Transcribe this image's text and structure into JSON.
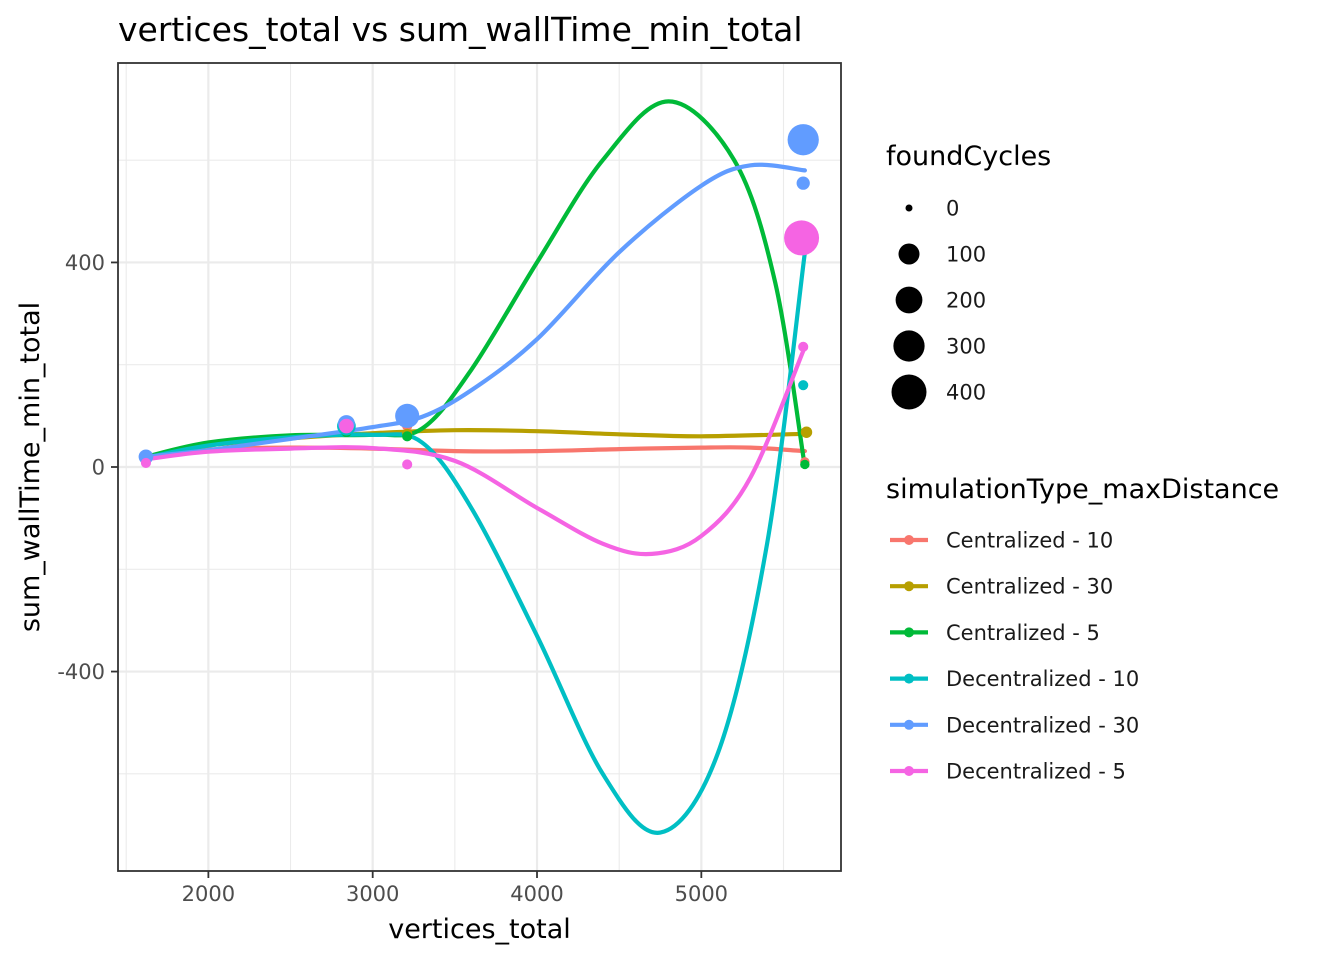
{
  "chart_data": {
    "type": "scatter",
    "title": "vertices_total  vs  sum_wallTime_min_total",
    "xlabel": "vertices_total",
    "ylabel": "sum_wallTime_min_total",
    "xlim": [
      1450,
      5850
    ],
    "ylim": [
      -790,
      790
    ],
    "x_ticks": [
      2000,
      3000,
      4000,
      5000
    ],
    "y_ticks": [
      -400,
      0,
      400
    ],
    "x_tick_labels": [
      "2000",
      "3000",
      "4000",
      "5000"
    ],
    "y_tick_labels": [
      "-400",
      "0",
      "400"
    ],
    "grid": true,
    "size_legend": {
      "title": "foundCycles",
      "values": [
        0,
        100,
        200,
        300,
        400
      ],
      "labels": [
        "0",
        "100",
        "200",
        "300",
        "400"
      ]
    },
    "color_legend": {
      "title": "simulationType_maxDistance",
      "placement": "right"
    },
    "series": [
      {
        "name": "Centralized - 10",
        "color": "#F8766D",
        "points": [
          {
            "x": 1620,
            "y": 18,
            "size": 10
          },
          {
            "x": 2840,
            "y": 75,
            "size": 5
          },
          {
            "x": 3210,
            "y": 80,
            "size": 5
          },
          {
            "x": 5630,
            "y": 10,
            "size": 3
          }
        ],
        "curve": [
          [
            1620,
            20
          ],
          [
            2000,
            34
          ],
          [
            2500,
            38
          ],
          [
            3000,
            36
          ],
          [
            3500,
            31
          ],
          [
            4000,
            31
          ],
          [
            4500,
            35
          ],
          [
            5000,
            38
          ],
          [
            5300,
            38
          ],
          [
            5630,
            31
          ]
        ]
      },
      {
        "name": "Centralized - 30",
        "color": "#B79F00",
        "points": [
          {
            "x": 1620,
            "y": 22,
            "size": 10
          },
          {
            "x": 2840,
            "y": 75,
            "size": 5
          },
          {
            "x": 3210,
            "y": 65,
            "size": 5
          },
          {
            "x": 5640,
            "y": 68,
            "size": 10
          }
        ],
        "curve": [
          [
            1620,
            18
          ],
          [
            2000,
            42
          ],
          [
            2500,
            56
          ],
          [
            3000,
            66
          ],
          [
            3500,
            72
          ],
          [
            4000,
            70
          ],
          [
            4500,
            64
          ],
          [
            5000,
            60
          ],
          [
            5630,
            65
          ]
        ]
      },
      {
        "name": "Centralized - 5",
        "color": "#00BA38",
        "points": [
          {
            "x": 1620,
            "y": 15,
            "size": 10
          },
          {
            "x": 2840,
            "y": 70,
            "size": 10
          },
          {
            "x": 3210,
            "y": 60,
            "size": 5
          },
          {
            "x": 5630,
            "y": 5,
            "size": 3
          }
        ],
        "curve": [
          [
            1620,
            20
          ],
          [
            2000,
            48
          ],
          [
            2500,
            62
          ],
          [
            3000,
            63
          ],
          [
            3300,
            75
          ],
          [
            3600,
            190
          ],
          [
            4000,
            400
          ],
          [
            4400,
            600
          ],
          [
            4800,
            715
          ],
          [
            5200,
            600
          ],
          [
            5450,
            360
          ],
          [
            5630,
            0
          ]
        ]
      },
      {
        "name": "Decentralized - 10",
        "color": "#00BFC4",
        "points": [
          {
            "x": 1620,
            "y": 20,
            "size": 10
          },
          {
            "x": 2840,
            "y": 80,
            "size": 70
          },
          {
            "x": 3210,
            "y": 95,
            "size": 60
          },
          {
            "x": 5620,
            "y": 160,
            "size": 5
          },
          {
            "x": 5620,
            "y": 640,
            "size": 250
          }
        ],
        "curve": [
          [
            1620,
            18
          ],
          [
            2000,
            42
          ],
          [
            2500,
            58
          ],
          [
            3000,
            63
          ],
          [
            3300,
            48
          ],
          [
            3600,
            -80
          ],
          [
            4000,
            -330
          ],
          [
            4400,
            -600
          ],
          [
            4750,
            -715
          ],
          [
            5100,
            -560
          ],
          [
            5400,
            -150
          ],
          [
            5630,
            420
          ]
        ]
      },
      {
        "name": "Decentralized - 30",
        "color": "#619CFF",
        "points": [
          {
            "x": 1620,
            "y": 20,
            "size": 30
          },
          {
            "x": 2840,
            "y": 85,
            "size": 50
          },
          {
            "x": 3210,
            "y": 100,
            "size": 150
          },
          {
            "x": 5620,
            "y": 555,
            "size": 20
          },
          {
            "x": 5620,
            "y": 640,
            "size": 300
          }
        ],
        "curve": [
          [
            1620,
            20
          ],
          [
            2000,
            33
          ],
          [
            2500,
            55
          ],
          [
            3000,
            78
          ],
          [
            3300,
            98
          ],
          [
            3600,
            150
          ],
          [
            4000,
            250
          ],
          [
            4500,
            420
          ],
          [
            5000,
            550
          ],
          [
            5300,
            590
          ],
          [
            5630,
            580
          ]
        ]
      },
      {
        "name": "Decentralized - 5",
        "color": "#F564E3",
        "points": [
          {
            "x": 1620,
            "y": 8,
            "size": 5
          },
          {
            "x": 2840,
            "y": 80,
            "size": 30
          },
          {
            "x": 3210,
            "y": 5,
            "size": 5
          },
          {
            "x": 5620,
            "y": 235,
            "size": 5
          },
          {
            "x": 5610,
            "y": 448,
            "size": 400
          }
        ],
        "curve": [
          [
            1620,
            15
          ],
          [
            2000,
            30
          ],
          [
            2500,
            36
          ],
          [
            3000,
            37
          ],
          [
            3500,
            12
          ],
          [
            4000,
            -80
          ],
          [
            4400,
            -150
          ],
          [
            4700,
            -170
          ],
          [
            5000,
            -135
          ],
          [
            5300,
            -20
          ],
          [
            5630,
            235
          ]
        ]
      }
    ]
  }
}
